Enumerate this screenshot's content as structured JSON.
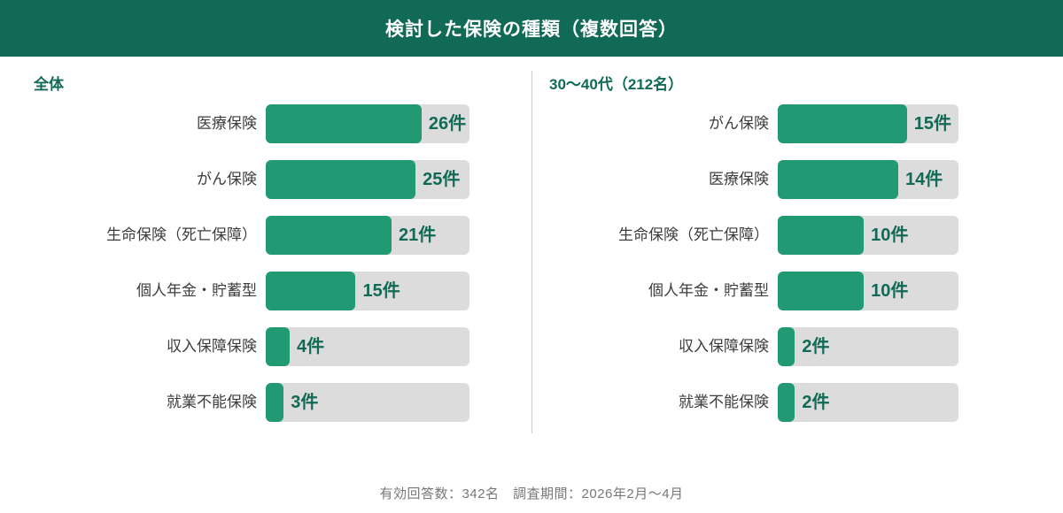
{
  "header": {
    "title": "検討した保険の種類（複数回答）"
  },
  "colors": {
    "header_green": "#106a55",
    "bar_green": "#219a74",
    "accent_dark_green": "#116a55",
    "track_gray": "#dcdcdc",
    "label_dark": "#3c3c3c",
    "divider_gray": "#cccccc",
    "footer_gray": "#777777"
  },
  "footer": {
    "text": "有効回答数：342名　調査期間：2026年2月〜4月"
  },
  "chart_data": [
    {
      "type": "bar",
      "orientation": "horizontal",
      "title": "全体",
      "unit": "件",
      "axis_max": 34,
      "grid": false,
      "categories": [
        "医療保険",
        "がん保険",
        "生命保険（死亡保障）",
        "個人年金・貯蓄型",
        "収入保障保険",
        "就業不能保険"
      ],
      "values": [
        26,
        25,
        21,
        15,
        4,
        3
      ],
      "value_labels": [
        "26件",
        "25件",
        "21件",
        "15件",
        "4件",
        "3件"
      ]
    },
    {
      "type": "bar",
      "orientation": "horizontal",
      "title": "30〜40代（212名）",
      "unit": "件",
      "axis_max": 21,
      "grid": false,
      "categories": [
        "がん保険",
        "医療保険",
        "生命保険（死亡保障）",
        "個人年金・貯蓄型",
        "収入保障保険",
        "就業不能保険"
      ],
      "values": [
        15,
        14,
        10,
        10,
        2,
        2
      ],
      "value_labels": [
        "15件",
        "14件",
        "10件",
        "10件",
        "2件",
        "2件"
      ]
    }
  ]
}
